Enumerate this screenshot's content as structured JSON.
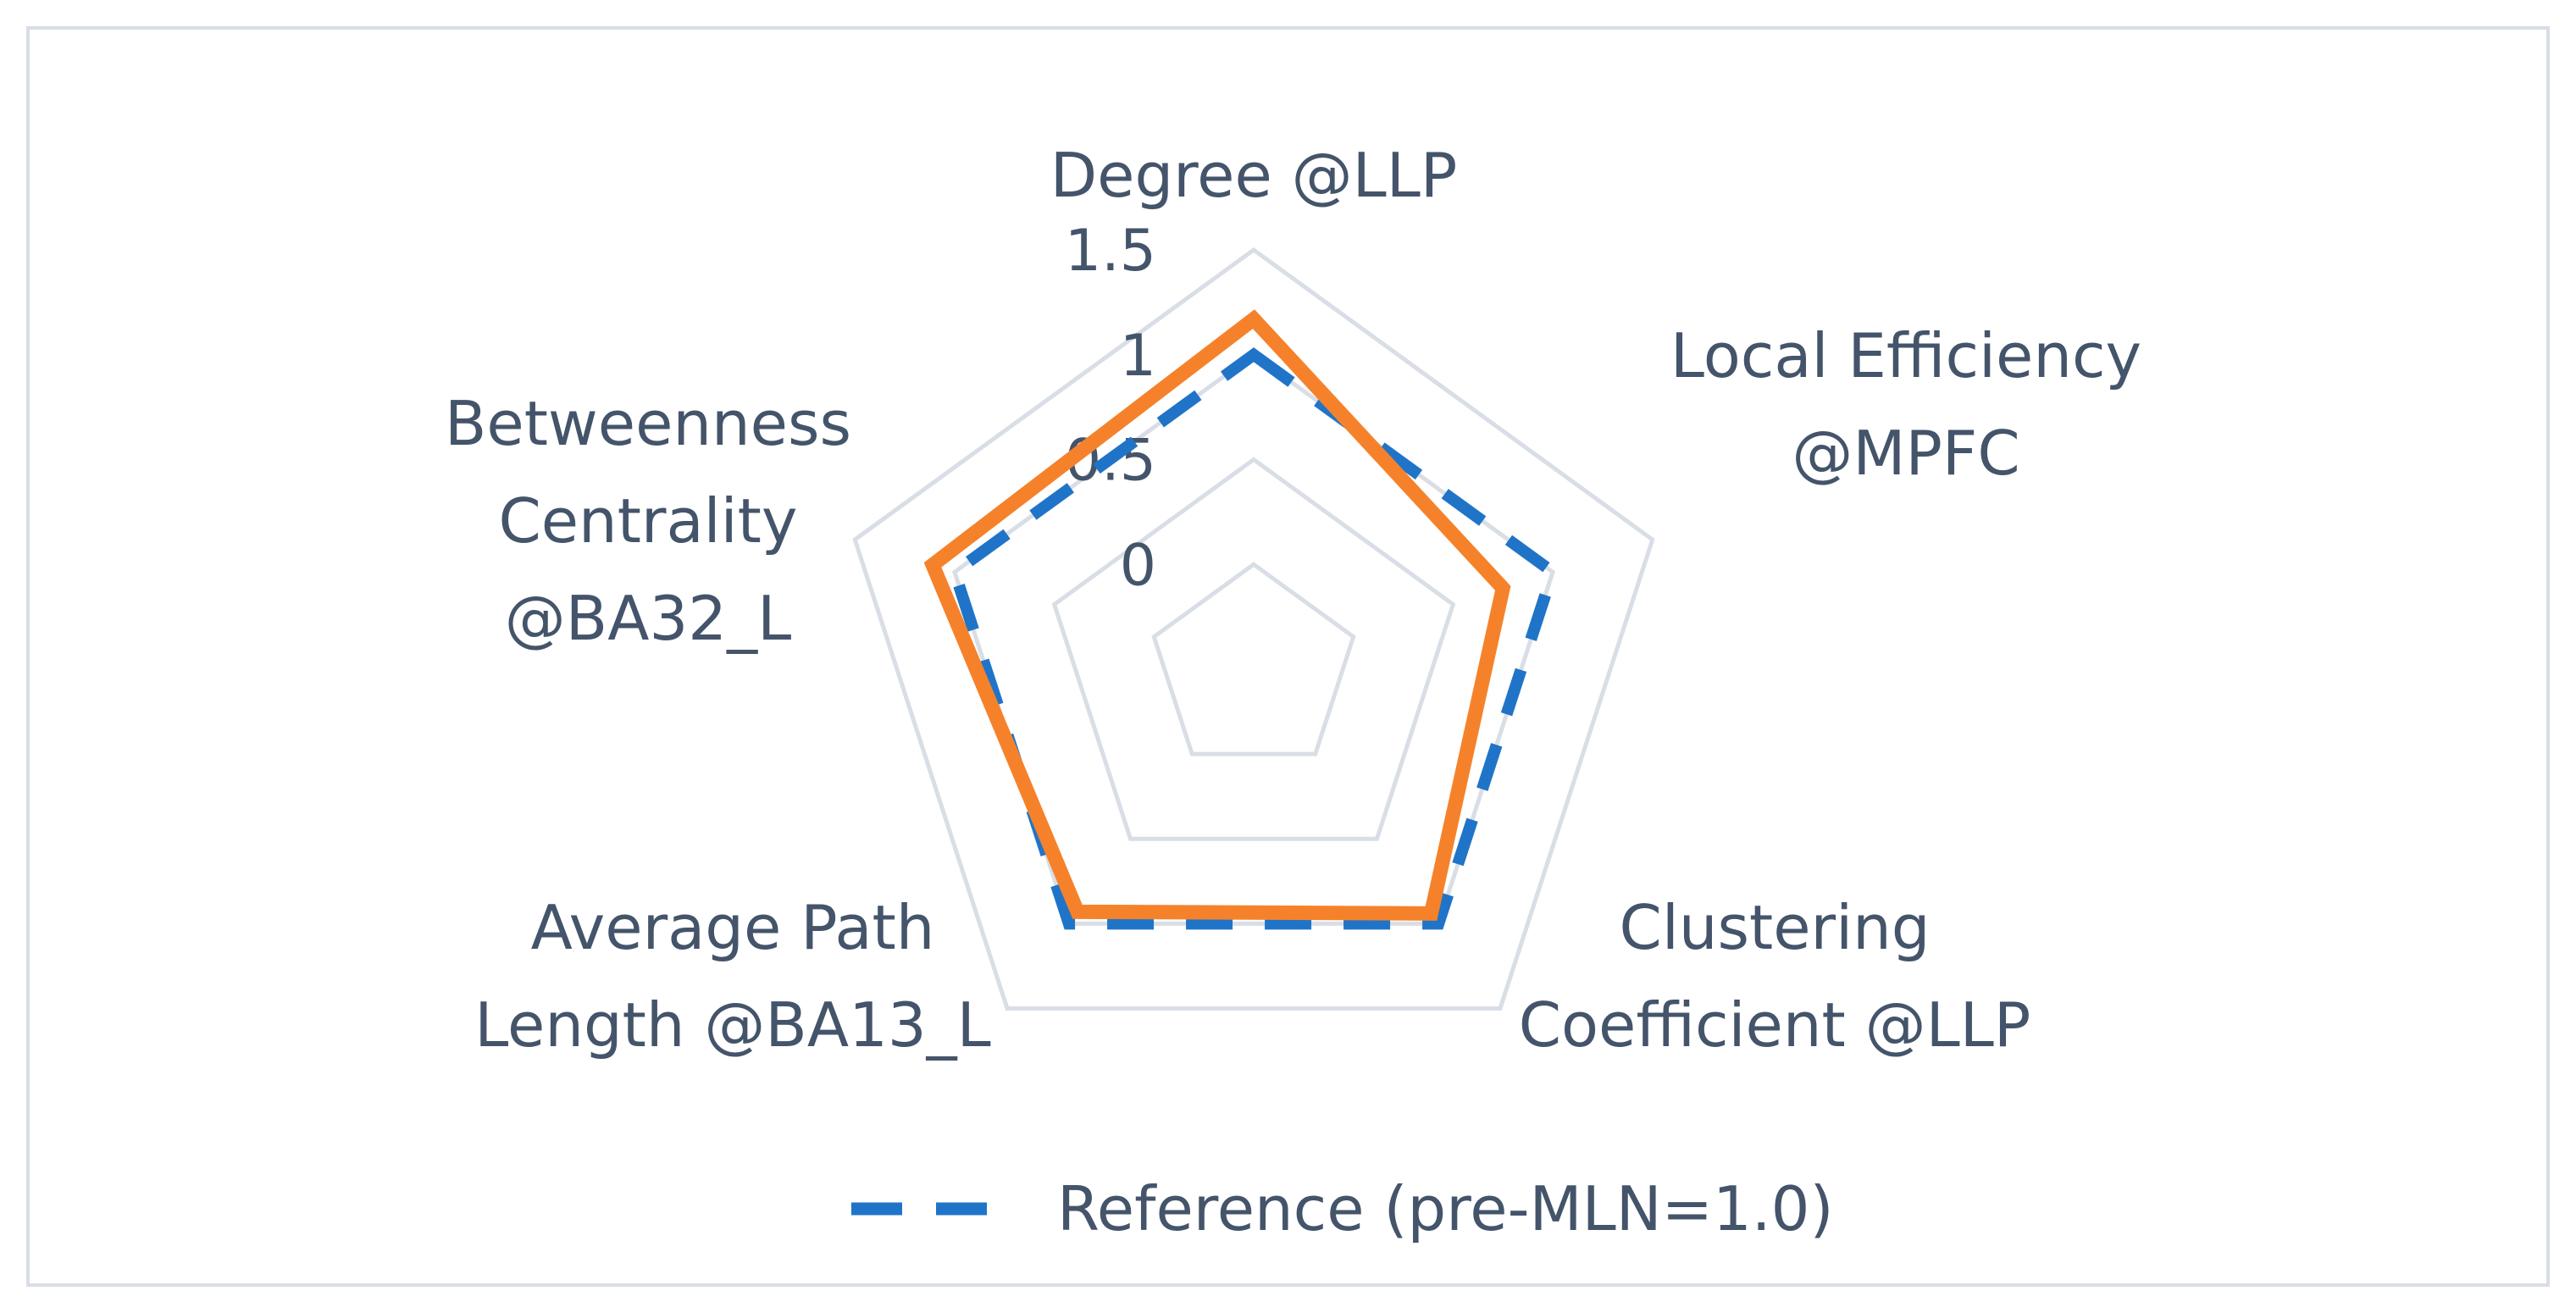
{
  "chart_data": {
    "type": "radar",
    "title": "",
    "axes": [
      {
        "label_lines": [
          "Degree @LLP"
        ]
      },
      {
        "label_lines": [
          "Local Efficiency",
          "@MPFC"
        ]
      },
      {
        "label_lines": [
          "Clustering",
          "Coefficient @LLP"
        ]
      },
      {
        "label_lines": [
          "Average Path",
          "Length @BA13_L"
        ]
      },
      {
        "label_lines": [
          "Betweenness",
          "Centrality",
          "@BA32_L"
        ]
      }
    ],
    "radial_ticks": [
      "0",
      "0.5",
      "1",
      "1.5"
    ],
    "rlim": [
      -0.5,
      1.5
    ],
    "series": [
      {
        "name": "Reference  (pre-MLN=1.0)",
        "values": [
          1.0,
          1.0,
          1.0,
          1.0,
          1.0
        ],
        "color": "#2074c8",
        "dashed": true
      },
      {
        "values": [
          1.17,
          0.75,
          0.94,
          0.93,
          1.11
        ],
        "color": "#f5822a",
        "dashed": false
      }
    ],
    "grid_color": "#d9dee6",
    "legend_position": "bottom"
  }
}
